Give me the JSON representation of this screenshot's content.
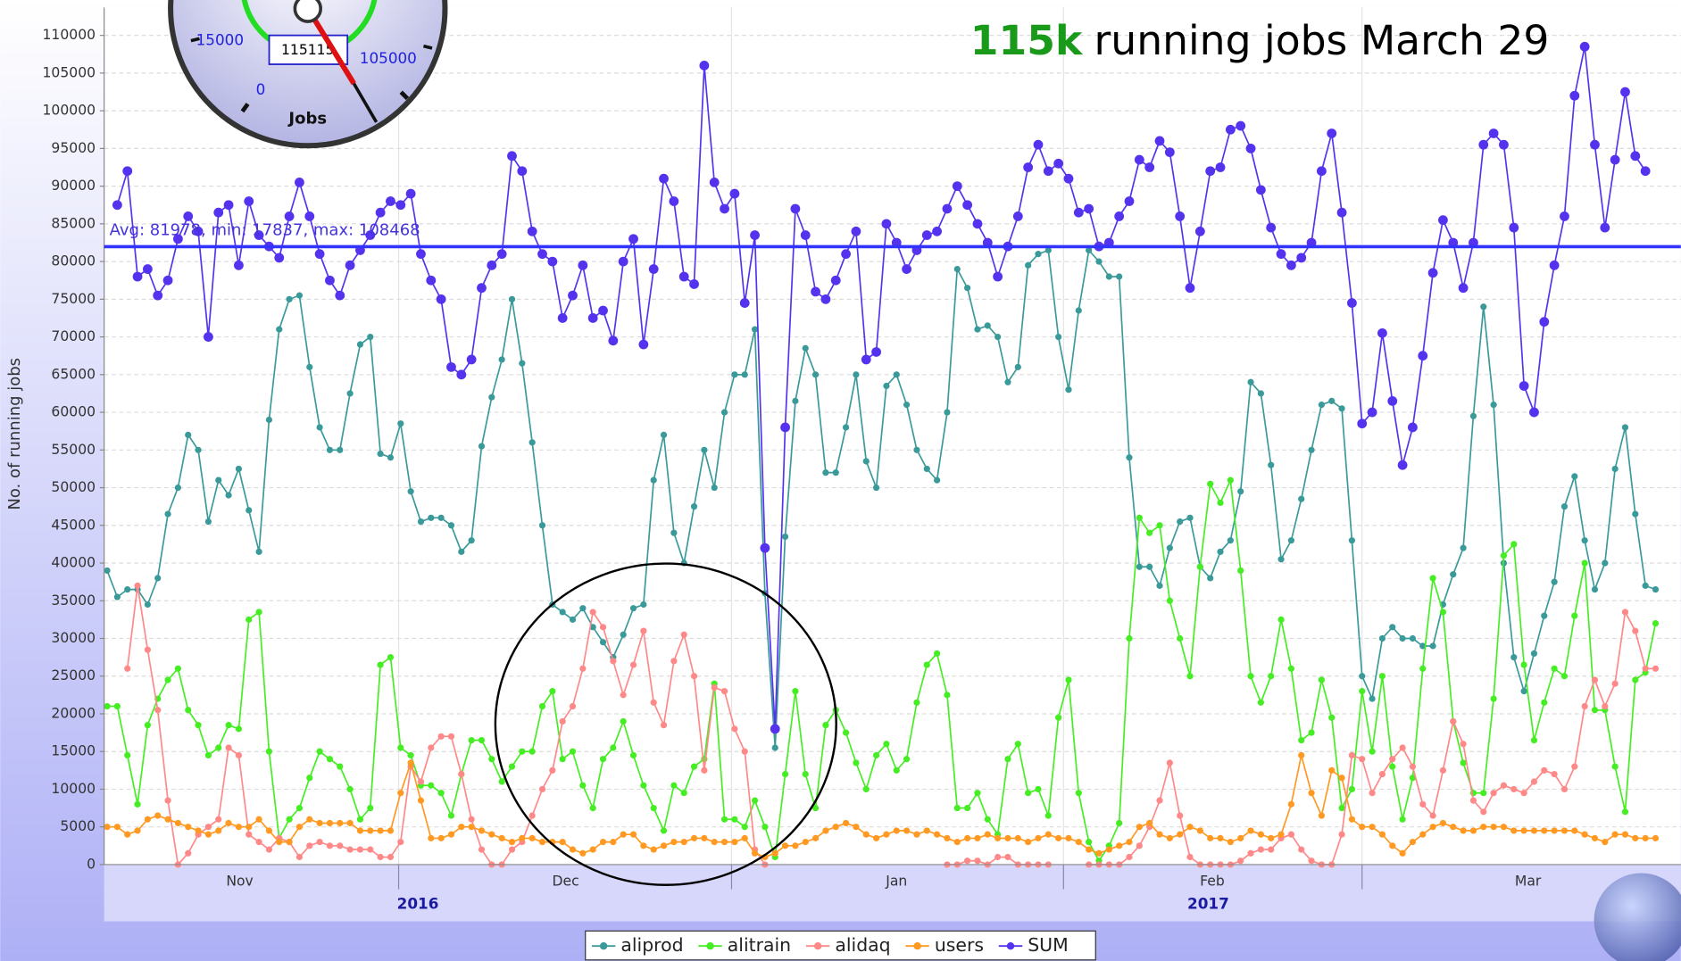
{
  "chart_data": {
    "type": "line",
    "annotation": {
      "highlight": "115k",
      "text": "running jobs March 29"
    },
    "y_label": "No. of running jobs",
    "gauge": {
      "value": 115115,
      "scale_labels": [
        0,
        15000,
        105000
      ],
      "title": "Jobs"
    },
    "avg_line": {
      "value": 81978,
      "label": "Avg: 81978, min: 17837, max: 108468"
    },
    "xlim": [
      -0.3,
      155.5
    ],
    "xticks": [
      {
        "value": 13.1,
        "label": "Nov"
      },
      {
        "value": 45.3,
        "label": "Dec"
      },
      {
        "value": 78.0,
        "label": "Jan"
      },
      {
        "value": 109.2,
        "label": "Feb"
      },
      {
        "value": 140.4,
        "label": "Mar"
      }
    ],
    "xticks_major": [
      {
        "value": 30.7,
        "label": "2016"
      },
      {
        "value": 108.8,
        "label": "2017"
      }
    ],
    "xgrid": [
      28.8,
      61.7,
      94.5,
      124.0
    ],
    "ylim": [
      0,
      113700
    ],
    "yticks": [
      0,
      5000,
      10000,
      15000,
      20000,
      25000,
      30000,
      35000,
      40000,
      45000,
      50000,
      55000,
      60000,
      65000,
      70000,
      75000,
      80000,
      85000,
      90000,
      95000,
      100000,
      105000,
      110000
    ],
    "grid": true,
    "series": [
      {
        "name": "aliprod",
        "color": "#3a9a9a",
        "values": [
          39000,
          35500,
          36500,
          36500,
          34500,
          38000,
          46500,
          50000,
          57000,
          55000,
          45500,
          51000,
          49000,
          52500,
          47000,
          41500,
          59000,
          71000,
          75000,
          75500,
          66000,
          58000,
          55000,
          55000,
          62500,
          69000,
          70000,
          54500,
          54000,
          58500,
          49500,
          45500,
          46000,
          46000,
          45000,
          41500,
          43000,
          55500,
          62000,
          67000,
          75000,
          66500,
          56000,
          45000,
          34500,
          33500,
          32500,
          34000,
          31500,
          29500,
          27500,
          30500,
          34000,
          34500,
          51000,
          57000,
          44000,
          40000,
          47500,
          55000,
          50000,
          60000,
          65000,
          65000,
          71000,
          36000,
          15500,
          43500,
          61500,
          68500,
          65000,
          52000,
          52000,
          58000,
          65000,
          53500,
          50000,
          63500,
          65000,
          61000,
          55000,
          52500,
          51000,
          60000,
          79000,
          76500,
          71000,
          71500,
          70000,
          64000,
          66000,
          79500,
          81000,
          81500,
          70000,
          63000,
          73500,
          81500,
          80000,
          78000,
          78000,
          54000,
          39500,
          39500,
          37000,
          42000,
          45500,
          46000,
          39500,
          38000,
          41500,
          43000,
          49500,
          64000,
          62500,
          53000,
          40500,
          43000,
          48500,
          55000,
          61000,
          61500,
          60500,
          43000,
          25000,
          22000,
          30000,
          31500,
          30000,
          30000,
          29000,
          29000,
          34500,
          38500,
          42000,
          59500,
          74000,
          61000,
          40000,
          27500,
          23000,
          28000,
          33000,
          37500,
          47500,
          51500,
          43000,
          36500,
          40000,
          52500,
          58000,
          46500,
          37000,
          36500
        ]
      },
      {
        "name": "alitrain",
        "color": "#44ee22",
        "values": [
          21000,
          21000,
          14500,
          8000,
          18500,
          22000,
          24500,
          26000,
          20500,
          18500,
          14500,
          15500,
          18500,
          18000,
          32500,
          33500,
          15000,
          3500,
          6000,
          7500,
          11500,
          15000,
          14000,
          13000,
          10000,
          6000,
          7500,
          26500,
          27500,
          15500,
          14500,
          10500,
          10500,
          9500,
          6500,
          12000,
          16500,
          16500,
          14000,
          11000,
          13000,
          15000,
          15000,
          21000,
          23000,
          14000,
          15000,
          10500,
          7500,
          14000,
          15500,
          19000,
          14500,
          10500,
          7500,
          4500,
          10500,
          9500,
          13000,
          14000,
          24000,
          6000,
          6000,
          5000,
          8500,
          5000,
          1000,
          12000,
          23000,
          12000,
          7500,
          18500,
          20500,
          17500,
          13500,
          10000,
          14500,
          16000,
          12500,
          14000,
          21500,
          26500,
          28000,
          22500,
          7500,
          7500,
          9500,
          6000,
          4000,
          14000,
          16000,
          9500,
          10000,
          6500,
          19500,
          24500,
          9500,
          3000,
          500,
          2500,
          5500,
          30000,
          46000,
          44000,
          45000,
          35000,
          30000,
          25000,
          39500,
          50500,
          48000,
          51000,
          39000,
          25000,
          21500,
          25000,
          32500,
          26000,
          16500,
          17500,
          24500,
          19500,
          7500,
          10000,
          23000,
          15000,
          25000,
          13000,
          6000,
          11500,
          26000,
          38000,
          33500,
          19000,
          13500,
          9500,
          9500,
          22000,
          41000,
          42500,
          26500,
          16500,
          21500,
          26000,
          25000,
          33000,
          40000,
          20500,
          20500,
          13000,
          7000,
          24500,
          25500,
          32000
        ]
      },
      {
        "name": "alidaq",
        "color": "#ff8888",
        "values": [
          null,
          null,
          26000,
          37000,
          28500,
          20500,
          8500,
          0,
          1500,
          4000,
          5000,
          6000,
          15500,
          14500,
          4000,
          3000,
          2000,
          3500,
          3000,
          1000,
          2500,
          3000,
          2500,
          2500,
          2000,
          2000,
          2000,
          1000,
          1000,
          3000,
          13000,
          11000,
          15500,
          17000,
          17000,
          12000,
          6000,
          2000,
          0,
          0,
          2000,
          3000,
          6500,
          10000,
          12500,
          19000,
          21000,
          26000,
          33500,
          31500,
          27000,
          22500,
          26500,
          31000,
          21500,
          18500,
          27000,
          30500,
          25000,
          12500,
          23500,
          23000,
          18000,
          15000,
          2000,
          0,
          null,
          null,
          null,
          null,
          null,
          null,
          null,
          null,
          null,
          null,
          null,
          null,
          null,
          null,
          null,
          null,
          null,
          0,
          0,
          500,
          500,
          0,
          1000,
          1000,
          0,
          0,
          0,
          0,
          null,
          null,
          null,
          0,
          0,
          0,
          0,
          1000,
          2500,
          5000,
          8500,
          13500,
          6500,
          1000,
          0,
          0,
          0,
          0,
          500,
          1500,
          2000,
          2000,
          3500,
          4000,
          2000,
          500,
          0,
          0,
          4000,
          14500,
          14000,
          9500,
          12000,
          14000,
          15500,
          13000,
          8000,
          6500,
          12500,
          19000,
          16000,
          8500,
          7000,
          9500,
          10500,
          10000,
          9500,
          11000,
          12500,
          12000,
          10000,
          13000,
          21000,
          24500,
          21000,
          24000,
          33500,
          31000,
          26000,
          26000
        ]
      },
      {
        "name": "users",
        "color": "#ff9922",
        "values": [
          5000,
          5000,
          4000,
          4500,
          6000,
          6500,
          6000,
          5500,
          5000,
          4500,
          4000,
          4500,
          5500,
          5000,
          5000,
          6000,
          4500,
          3000,
          3000,
          5000,
          6000,
          5500,
          5500,
          5500,
          5500,
          4500,
          4500,
          4500,
          4500,
          9500,
          13500,
          8500,
          3500,
          3500,
          4000,
          5000,
          5000,
          4500,
          4000,
          3500,
          3000,
          3500,
          3500,
          3000,
          3000,
          3000,
          2000,
          1500,
          2000,
          3000,
          3000,
          4000,
          4000,
          2500,
          2000,
          2500,
          3000,
          3000,
          3500,
          3500,
          3000,
          3000,
          3000,
          3500,
          1500,
          1000,
          1500,
          2500,
          2500,
          3000,
          3500,
          4500,
          5000,
          5500,
          5000,
          4000,
          3500,
          4000,
          4500,
          4500,
          4000,
          4500,
          4000,
          3500,
          3000,
          3500,
          3500,
          4000,
          3500,
          3500,
          3500,
          3000,
          3500,
          4000,
          3500,
          3500,
          3000,
          2000,
          1500,
          2000,
          2500,
          3000,
          5000,
          5500,
          4000,
          3500,
          4000,
          5000,
          4500,
          3500,
          3500,
          3000,
          3500,
          4500,
          4000,
          3500,
          4000,
          8000,
          14500,
          9500,
          6500,
          12500,
          11500,
          6000,
          5000,
          5000,
          4000,
          2500,
          1500,
          3000,
          4000,
          5000,
          5500,
          5000,
          4500,
          4500,
          5000,
          5000,
          5000,
          4500,
          4500,
          4500,
          4500,
          4500,
          4500,
          4500,
          4000,
          3500,
          3000,
          4000,
          4000,
          3500,
          3500,
          3500
        ]
      },
      {
        "name": "SUM",
        "color": "#5533ee",
        "values": [
          null,
          87500,
          92000,
          78000,
          79000,
          75500,
          77500,
          83000,
          86000,
          84000,
          70000,
          86500,
          87500,
          79500,
          88000,
          83500,
          82000,
          80500,
          86000,
          90500,
          86000,
          81000,
          77500,
          75500,
          79500,
          81500,
          83500,
          86500,
          88000,
          87500,
          89000,
          81000,
          77500,
          75000,
          66000,
          65000,
          67000,
          76500,
          79500,
          81000,
          94000,
          92000,
          84000,
          81000,
          80000,
          72500,
          75500,
          79500,
          72500,
          73500,
          69500,
          80000,
          83000,
          69000,
          79000,
          91000,
          88000,
          78000,
          77000,
          106000,
          90500,
          87000,
          89000,
          74500,
          83500,
          42000,
          18000,
          58000,
          87000,
          83500,
          76000,
          75000,
          77500,
          81000,
          84000,
          67000,
          68000,
          85000,
          82500,
          79000,
          81500,
          83500,
          84000,
          87000,
          90000,
          87500,
          85000,
          82500,
          78000,
          82000,
          86000,
          92500,
          95500,
          92000,
          93000,
          91000,
          86500,
          87000,
          82000,
          82500,
          86000,
          88000,
          93500,
          92500,
          96000,
          94500,
          86000,
          76500,
          84000,
          92000,
          92500,
          97500,
          98000,
          95000,
          89500,
          84500,
          81000,
          79500,
          80500,
          82500,
          92000,
          97000,
          86500,
          74500,
          58500,
          60000,
          70500,
          61500,
          53000,
          58000,
          67500,
          78500,
          85500,
          82500,
          76500,
          82500,
          95500,
          97000,
          95500,
          84500,
          63500,
          60000,
          72000,
          79500,
          86000,
          102000,
          108500,
          95500,
          84500,
          93500,
          102500,
          94000,
          92000,
          null
        ]
      }
    ]
  }
}
